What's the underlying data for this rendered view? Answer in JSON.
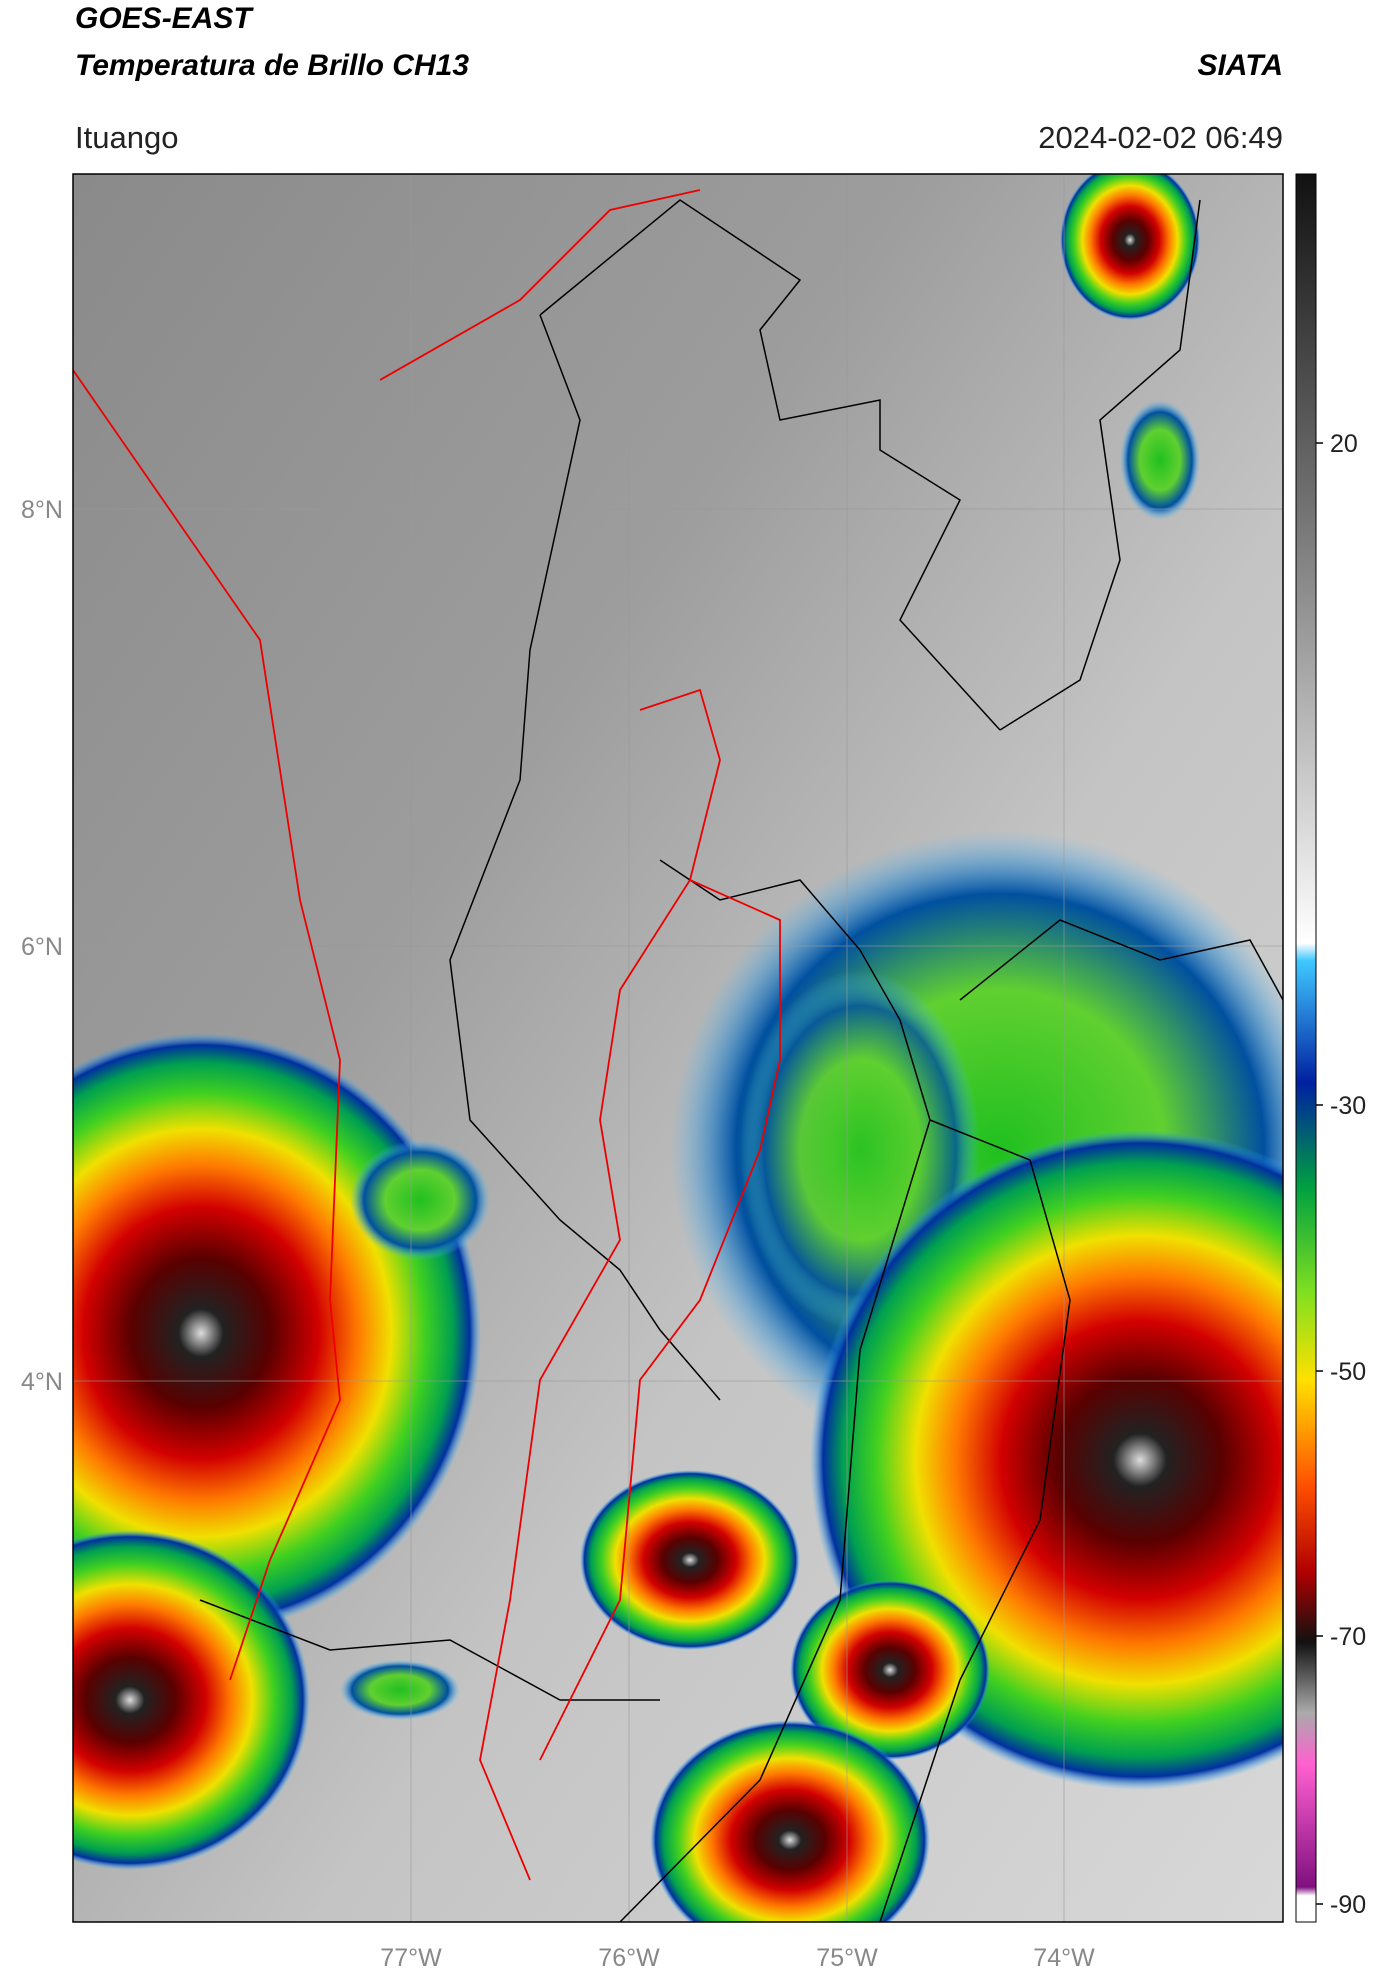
{
  "header": {
    "title": "GOES-EAST",
    "subtitle": "Temperatura de Brillo CH13",
    "brand": "SIATA",
    "location": "Ituango",
    "datetime": "2024-02-02 06:49"
  },
  "map": {
    "lat_labels": [
      "8°N",
      "6°N",
      "4°N"
    ],
    "lon_labels": [
      "77°W",
      "76°W",
      "75°W",
      "74°W"
    ]
  },
  "colorbar": {
    "labels": [
      "20",
      "-30",
      "-50",
      "-70",
      "-90"
    ]
  }
}
